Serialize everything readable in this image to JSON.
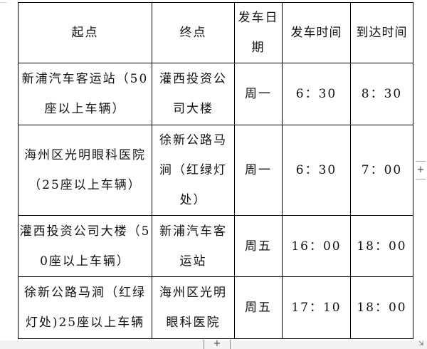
{
  "table": {
    "headers": [
      "起点",
      "终点",
      "发车日期",
      "发车时间",
      "到达时间"
    ],
    "rows": [
      [
        "新浦汽车客运站（50座以上车辆）",
        "灌西投资公司大楼",
        "周一",
        "6：30",
        "8：30"
      ],
      [
        "海州区光明眼科医院（25座以上车辆）",
        "徐新公路马涧（红绿灯处）",
        "周一",
        "6：30",
        "7：00"
      ],
      [
        "灌西投资公司大楼（50座以上车辆）",
        "新浦汽车客运站",
        "周五",
        "16：00",
        "18：00"
      ],
      [
        "徐新公路马涧（红绿灯处)25座以上车辆",
        "海州区光明眼科医院",
        "周五",
        "17：10",
        "18：00"
      ]
    ]
  },
  "controls": {
    "add_row": "+",
    "add_column": "+",
    "resize": "⇲"
  }
}
